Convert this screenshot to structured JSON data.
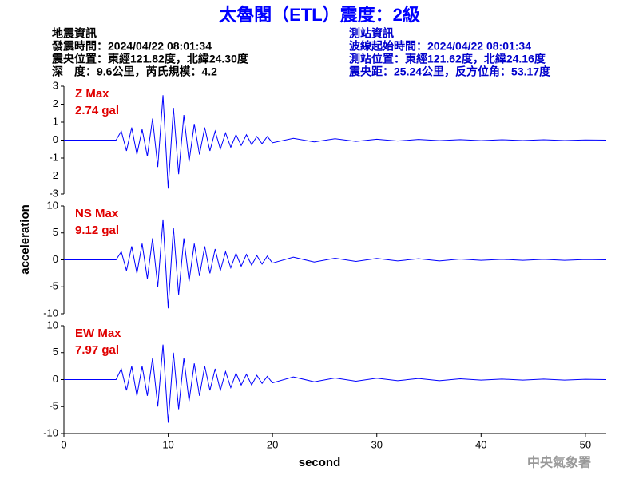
{
  "header": {
    "title": "太魯閣（ETL）震度：2級",
    "left": [
      "地震資訊",
      "發震時間：2024/04/22 08:01:34",
      "震央位置：東經121.82度，北緯24.30度",
      "深　度：9.6公里，芮氏規模：4.2"
    ],
    "right": [
      "測站資訊",
      "波線起始時間：2024/04/22 08:01:34",
      "測站位置：東經121.62度，北緯24.16度",
      "震央距：25.24公里，反方位角：53.17度"
    ]
  },
  "axis_labels": {
    "y": "acceleration",
    "x": "second"
  },
  "agency": "中央氣象署",
  "chart_data": [
    {
      "type": "line",
      "annotation": [
        "Z Max",
        "2.74 gal"
      ],
      "color": "#0000ff",
      "xlim": [
        0,
        52
      ],
      "ylim": [
        -3,
        3
      ],
      "yticks": [
        3,
        2,
        1,
        0,
        -1,
        -2,
        -3
      ],
      "x": [
        0,
        5,
        5.5,
        6,
        6.5,
        7,
        7.5,
        8,
        8.5,
        9,
        9.5,
        10,
        10.5,
        11,
        11.5,
        12,
        12.5,
        13,
        13.5,
        14,
        14.5,
        15,
        15.5,
        16,
        16.5,
        17,
        17.5,
        18,
        18.5,
        19,
        19.5,
        20,
        22,
        24,
        26,
        28,
        30,
        32,
        34,
        36,
        38,
        40,
        42,
        44,
        46,
        48,
        50,
        52
      ],
      "values": [
        0,
        0,
        0.5,
        -0.6,
        0.7,
        -0.8,
        0.6,
        -0.9,
        1.2,
        -1.5,
        2.5,
        -2.7,
        1.8,
        -1.9,
        1.4,
        -1.2,
        0.9,
        -0.8,
        0.7,
        -0.6,
        0.5,
        -0.5,
        0.4,
        -0.4,
        0.3,
        -0.3,
        0.3,
        -0.25,
        0.2,
        -0.2,
        0.2,
        -0.15,
        0.1,
        -0.1,
        0.08,
        -0.07,
        0.05,
        -0.05,
        0.04,
        -0.03,
        0.03,
        -0.03,
        0.02,
        -0.02,
        0.02,
        -0.02,
        0.01,
        0
      ]
    },
    {
      "type": "line",
      "annotation": [
        "NS Max",
        "9.12 gal"
      ],
      "color": "#0000ff",
      "xlim": [
        0,
        52
      ],
      "ylim": [
        -10,
        10
      ],
      "yticks": [
        10,
        5,
        0,
        -5,
        -10
      ],
      "x": [
        0,
        5,
        5.5,
        6,
        6.5,
        7,
        7.5,
        8,
        8.5,
        9,
        9.5,
        10,
        10.5,
        11,
        11.5,
        12,
        12.5,
        13,
        13.5,
        14,
        14.5,
        15,
        15.5,
        16,
        16.5,
        17,
        17.5,
        18,
        18.5,
        19,
        19.5,
        20,
        22,
        24,
        26,
        28,
        30,
        32,
        34,
        36,
        38,
        40,
        42,
        44,
        46,
        48,
        50,
        52
      ],
      "values": [
        0,
        0,
        1.5,
        -2,
        2.5,
        -2.5,
        3,
        -3.5,
        4,
        -5,
        7.5,
        -9,
        6,
        -6.5,
        4,
        -4,
        3,
        -3,
        2.5,
        -2.5,
        2,
        -2,
        1.5,
        -1.5,
        1.2,
        -1.2,
        1,
        -1,
        0.8,
        -0.8,
        0.7,
        -0.6,
        0.5,
        -0.4,
        0.3,
        -0.3,
        0.25,
        -0.2,
        0.2,
        -0.2,
        0.15,
        -0.1,
        0.1,
        -0.1,
        0.1,
        -0.1,
        0.05,
        0
      ]
    },
    {
      "type": "line",
      "annotation": [
        "EW Max",
        "7.97 gal"
      ],
      "color": "#0000ff",
      "xlim": [
        0,
        52
      ],
      "ylim": [
        -10,
        10
      ],
      "yticks": [
        10,
        5,
        0,
        -5,
        -10
      ],
      "xticks": [
        0,
        10,
        20,
        30,
        40,
        50
      ],
      "x": [
        0,
        5,
        5.5,
        6,
        6.5,
        7,
        7.5,
        8,
        8.5,
        9,
        9.5,
        10,
        10.5,
        11,
        11.5,
        12,
        12.5,
        13,
        13.5,
        14,
        14.5,
        15,
        15.5,
        16,
        16.5,
        17,
        17.5,
        18,
        18.5,
        19,
        19.5,
        20,
        22,
        24,
        26,
        28,
        30,
        32,
        34,
        36,
        38,
        40,
        42,
        44,
        46,
        48,
        50,
        52
      ],
      "values": [
        0,
        0,
        2,
        -2,
        2.5,
        -3,
        2.5,
        -3,
        4,
        -5,
        6.5,
        -8,
        5,
        -5.5,
        4,
        -4,
        3,
        -3,
        2.5,
        -2,
        2,
        -2,
        1.5,
        -1.5,
        1.2,
        -1,
        1,
        -1,
        0.8,
        -0.7,
        0.6,
        -0.6,
        0.5,
        -0.4,
        0.3,
        -0.3,
        0.25,
        -0.2,
        0.2,
        -0.2,
        0.15,
        -0.1,
        0.1,
        -0.1,
        0.1,
        -0.1,
        0.05,
        0
      ]
    }
  ]
}
